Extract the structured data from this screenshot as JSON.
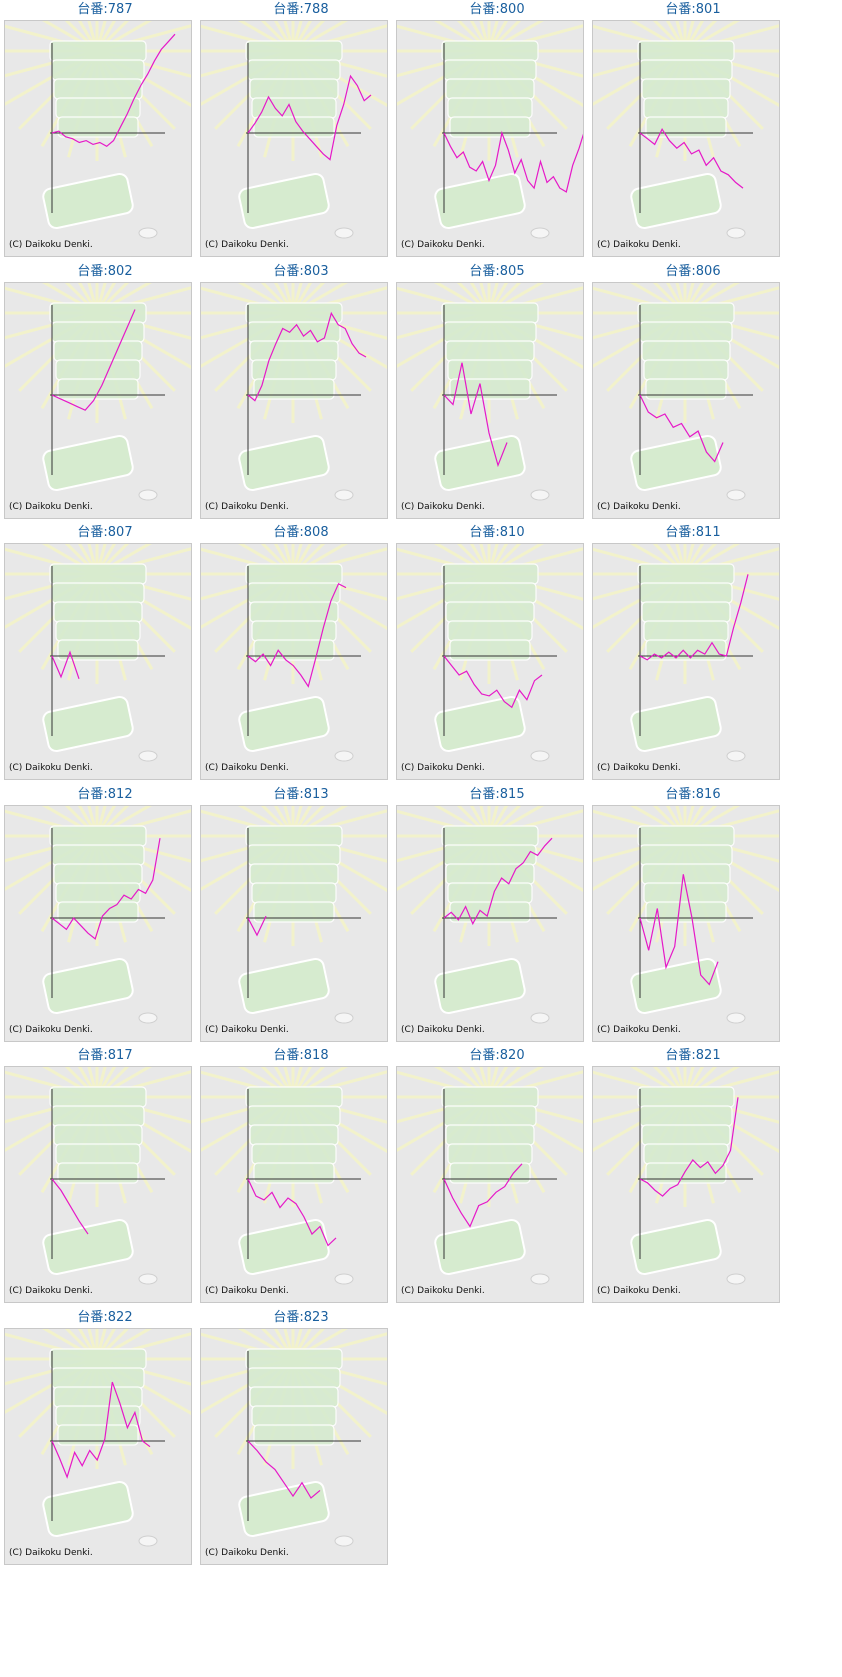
{
  "colors": {
    "title": "#1a5f9e",
    "line": "#e619c8",
    "axis": "#333333",
    "panel_bg": "#e8e8e8"
  },
  "copyright": "(C) Daikoku Denki.",
  "graphs": [
    {
      "title": "台番:787",
      "series": [
        0,
        2,
        -4,
        -6,
        -10,
        -8,
        -12,
        -10,
        -14,
        -8,
        6,
        20,
        36,
        50,
        62,
        76,
        88,
        96,
        104
      ]
    },
    {
      "title": "台番:788",
      "series": [
        0,
        10,
        22,
        38,
        26,
        18,
        30,
        12,
        2,
        -6,
        -14,
        -22,
        -28,
        8,
        30,
        60,
        50,
        34,
        40
      ]
    },
    {
      "title": "台番:800",
      "series": [
        0,
        -14,
        -26,
        -20,
        -36,
        -40,
        -30,
        -50,
        -34,
        0,
        -18,
        -42,
        -28,
        -50,
        -58,
        -30,
        -52,
        -46,
        -58,
        -62,
        -34,
        -16,
        6,
        -4
      ]
    },
    {
      "title": "台番:801",
      "series": [
        0,
        -6,
        -12,
        4,
        -8,
        -16,
        -10,
        -22,
        -18,
        -34,
        -26,
        -40,
        -44,
        -52,
        -58
      ]
    },
    {
      "title": "台番:802",
      "series": [
        0,
        -4,
        -8,
        -12,
        -16,
        -6,
        10,
        30,
        50,
        70,
        90
      ]
    },
    {
      "title": "台番:803",
      "series": [
        0,
        -6,
        10,
        36,
        54,
        70,
        66,
        74,
        62,
        68,
        56,
        60,
        86,
        74,
        70,
        54,
        44,
        40
      ]
    },
    {
      "title": "台番:805",
      "series": [
        0,
        -10,
        34,
        -20,
        12,
        -40,
        -74,
        -50
      ]
    },
    {
      "title": "台番:806",
      "series": [
        0,
        -18,
        -24,
        -20,
        -34,
        -30,
        -44,
        -38,
        -60,
        -70,
        -50
      ]
    },
    {
      "title": "台番:807",
      "series": [
        0,
        -22,
        4,
        -24
      ]
    },
    {
      "title": "台番:808",
      "series": [
        0,
        -6,
        2,
        -10,
        6,
        -4,
        -10,
        -20,
        -32,
        -2,
        30,
        58,
        76,
        72
      ]
    },
    {
      "title": "台番:810",
      "series": [
        0,
        -10,
        -20,
        -16,
        -30,
        -40,
        -42,
        -36,
        -48,
        -54,
        -36,
        -46,
        -26,
        -20
      ]
    },
    {
      "title": "台番:811",
      "series": [
        0,
        -4,
        2,
        -2,
        4,
        -2,
        6,
        -2,
        6,
        2,
        14,
        2,
        0,
        30,
        56,
        86
      ]
    },
    {
      "title": "台番:812",
      "series": [
        0,
        -6,
        -12,
        0,
        -8,
        -16,
        -22,
        2,
        10,
        14,
        24,
        20,
        30,
        26,
        40,
        84
      ]
    },
    {
      "title": "台番:813",
      "series": [
        0,
        -18,
        2
      ]
    },
    {
      "title": "台番:815",
      "series": [
        0,
        6,
        -2,
        12,
        -6,
        8,
        2,
        28,
        42,
        36,
        52,
        58,
        70,
        66,
        76,
        84
      ]
    },
    {
      "title": "台番:816",
      "series": [
        0,
        -34,
        10,
        -52,
        -30,
        46,
        0,
        -60,
        -70,
        -46
      ]
    },
    {
      "title": "台番:817",
      "series": [
        0,
        -12,
        -28,
        -44,
        -58
      ]
    },
    {
      "title": "台番:818",
      "series": [
        0,
        -18,
        -22,
        -14,
        -30,
        -20,
        -26,
        -40,
        -58,
        -50,
        -70,
        -62
      ]
    },
    {
      "title": "台番:820",
      "series": [
        0,
        -20,
        -36,
        -50,
        -28,
        -24,
        -14,
        -8,
        6,
        16
      ]
    },
    {
      "title": "台番:821",
      "series": [
        0,
        -4,
        -12,
        -18,
        -10,
        -6,
        8,
        20,
        12,
        18,
        6,
        14,
        30,
        86
      ]
    },
    {
      "title": "台番:822",
      "series": [
        0,
        -18,
        -38,
        -12,
        -26,
        -10,
        -20,
        2,
        62,
        40,
        14,
        30,
        0,
        -6
      ]
    },
    {
      "title": "台番:823",
      "series": [
        0,
        -10,
        -22,
        -30,
        -44,
        -58,
        -44,
        -60,
        -52
      ]
    }
  ]
}
